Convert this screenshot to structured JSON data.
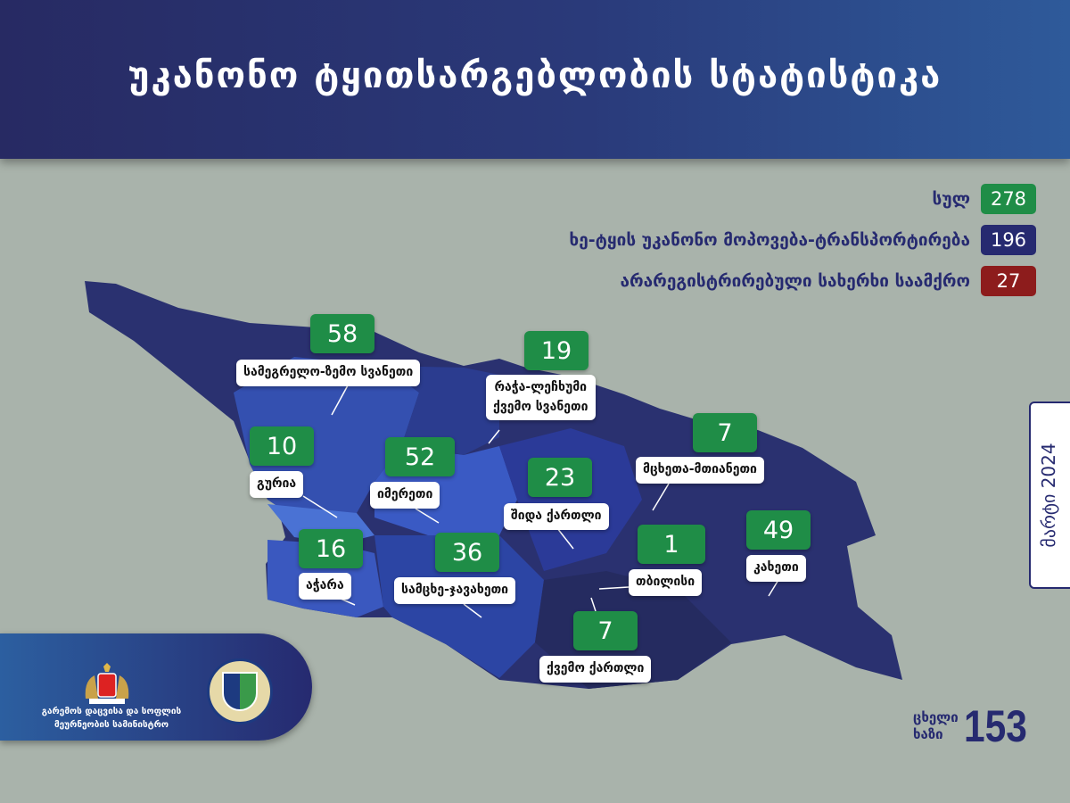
{
  "header": {
    "title": "უკანონო ტყითსარგებლობის სტატისტიკა"
  },
  "legend": [
    {
      "label": "სულ",
      "value": "278",
      "color": "#1f8d47"
    },
    {
      "label": "ხე-ტყის უკანონო მოპოვება-ტრანსპორტირება",
      "value": "196",
      "color": "#262a70"
    },
    {
      "label": "არარეგისტრირებული სახერხი საამქრო",
      "value": "27",
      "color": "#8d1c1c"
    }
  ],
  "regions": [
    {
      "name": "სამეგრელო-ზემო სვანეთი",
      "value": "58"
    },
    {
      "name": "რაჭა-ლეჩხუმი\nქვემო სვანეთი",
      "value": "19"
    },
    {
      "name": "მცხეთა-მთიანეთი",
      "value": "7"
    },
    {
      "name": "გურია",
      "value": "10"
    },
    {
      "name": "იმერეთი",
      "value": "52"
    },
    {
      "name": "შიდა ქართლი",
      "value": "23"
    },
    {
      "name": "კახეთი",
      "value": "49"
    },
    {
      "name": "აჭარა",
      "value": "16"
    },
    {
      "name": "სამცხე-ჯავახეთი",
      "value": "36"
    },
    {
      "name": "თბილისი",
      "value": "1"
    },
    {
      "name": "ქვემო ქართლი",
      "value": "7"
    }
  ],
  "date": "მარტი 2024",
  "hotline": {
    "label_line1": "ცხელი",
    "label_line2": "ხაზი",
    "number": "153"
  },
  "ministry": {
    "name": "გარემოს დაცვისა და სოფლის მეურნეობის სამინისტრო"
  }
}
